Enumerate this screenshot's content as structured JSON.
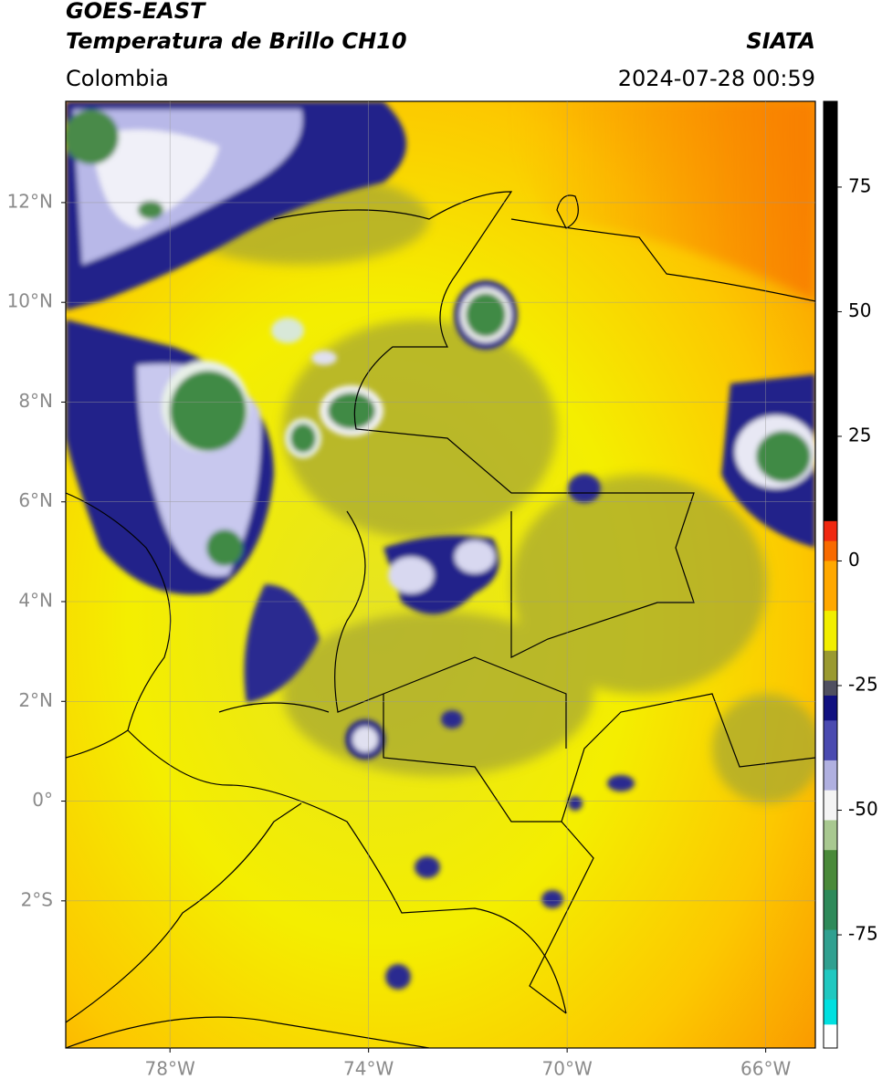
{
  "header": {
    "satellite": "GOES-EAST",
    "product": "Temperatura de Brillo CH10",
    "organization": "SIATA",
    "region": "Colombia",
    "datetime": "2024-07-28 00:59"
  },
  "map": {
    "xlim": [
      -80.1,
      -65
    ],
    "ylim": [
      -4.95,
      14.03
    ],
    "xticks": [
      {
        "value": -78,
        "label": "78°W"
      },
      {
        "value": -74,
        "label": "74°W"
      },
      {
        "value": -70,
        "label": "70°W"
      },
      {
        "value": -66,
        "label": "66°W"
      }
    ],
    "yticks": [
      {
        "value": 12,
        "label": "12°N"
      },
      {
        "value": 10,
        "label": "10°N"
      },
      {
        "value": 8,
        "label": "8°N"
      },
      {
        "value": 6,
        "label": "6°N"
      },
      {
        "value": 4,
        "label": "4°N"
      },
      {
        "value": 2,
        "label": "2°N"
      },
      {
        "value": 0,
        "label": "0°"
      },
      {
        "value": -2,
        "label": "2°S"
      }
    ],
    "grid": true
  },
  "colorbar": {
    "lim": [
      -97.7,
      92.2
    ],
    "ticks": [
      75,
      50,
      25,
      0,
      -25,
      -50,
      -75
    ],
    "bands": [
      {
        "from": 92.2,
        "to": 8,
        "color": "#000000"
      },
      {
        "from": 8,
        "to": 4,
        "color": "#f02810"
      },
      {
        "from": 4,
        "to": 0,
        "color": "#f86a00"
      },
      {
        "from": 0,
        "to": -10,
        "color": "#ffa800"
      },
      {
        "from": -10,
        "to": -18,
        "color": "#f2ee00"
      },
      {
        "from": -18,
        "to": -24,
        "color": "#9a9a30"
      },
      {
        "from": -24,
        "to": -27,
        "color": "#505060"
      },
      {
        "from": -27,
        "to": -32,
        "color": "#101080"
      },
      {
        "from": -32,
        "to": -40,
        "color": "#4a4ab0"
      },
      {
        "from": -40,
        "to": -46,
        "color": "#b0b0e0"
      },
      {
        "from": -46,
        "to": -52,
        "color": "#f4f4f4"
      },
      {
        "from": -52,
        "to": -58,
        "color": "#a8c890"
      },
      {
        "from": -58,
        "to": -66,
        "color": "#4a8a3a"
      },
      {
        "from": -66,
        "to": -74,
        "color": "#2e8a5a"
      },
      {
        "from": -74,
        "to": -82,
        "color": "#30a090"
      },
      {
        "from": -82,
        "to": -88,
        "color": "#20c8c0"
      },
      {
        "from": -88,
        "to": -93,
        "color": "#00e0e0"
      },
      {
        "from": -93,
        "to": -97.7,
        "color": "#ffffff"
      }
    ]
  }
}
